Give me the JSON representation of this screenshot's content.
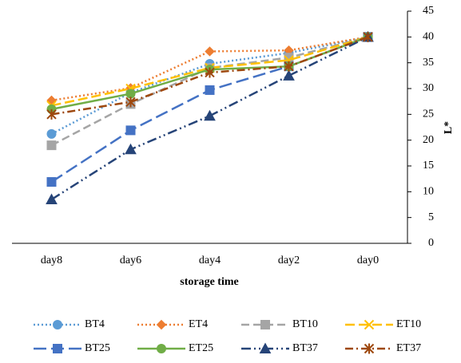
{
  "chart_data": {
    "type": "line",
    "x_label": "storage time",
    "y_label": "L*",
    "categories": [
      "day8",
      "day6",
      "day4",
      "day2",
      "day0"
    ],
    "ylim": [
      0,
      45
    ],
    "yticks": [
      0,
      5,
      10,
      15,
      20,
      25,
      30,
      35,
      40,
      45
    ],
    "y_axis_side": "right",
    "grid": false,
    "legend": "bottom",
    "series": [
      {
        "name": "BT4",
        "color": "#5b9bd5",
        "values": [
          21.2,
          29.2,
          34.8,
          36.9,
          40
        ]
      },
      {
        "name": "ET4",
        "color": "#ed7d31",
        "values": [
          27.7,
          30.1,
          37.2,
          37.4,
          40
        ]
      },
      {
        "name": "BT10",
        "color": "#a5a5a5",
        "values": [
          19,
          27,
          34,
          36,
          40
        ]
      },
      {
        "name": "ET10",
        "color": "#ffc000",
        "values": [
          26.7,
          30,
          34,
          35.5,
          40
        ]
      },
      {
        "name": "BT25",
        "color": "#4472c4",
        "values": [
          11.9,
          21.9,
          29.7,
          34.3,
          40
        ]
      },
      {
        "name": "ET25",
        "color": "#70ad47",
        "values": [
          26,
          29,
          33.7,
          34.3,
          40
        ]
      },
      {
        "name": "BT37",
        "color": "#264478",
        "values": [
          8.5,
          18.2,
          24.7,
          32.5,
          40
        ]
      },
      {
        "name": "ET37",
        "color": "#9e480e",
        "values": [
          25,
          27.4,
          33.1,
          34.3,
          40
        ]
      }
    ]
  }
}
